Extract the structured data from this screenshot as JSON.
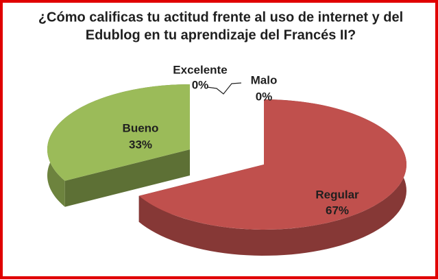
{
  "chart_data": {
    "type": "pie3d",
    "title": [
      "¿Cómo calificas tu actitud frente al uso de internet y del",
      "Edublog en tu aprendizaje del Francés II?"
    ],
    "categories": [
      "Malo",
      "Regular",
      "Bueno",
      "Excelente"
    ],
    "values": [
      0,
      67,
      33,
      0
    ],
    "value_labels": [
      "0%",
      "67%",
      "33%",
      "0%"
    ],
    "colors": [
      "#4f81bd",
      "#c0504d",
      "#9bbb59",
      "#8064a2"
    ]
  }
}
